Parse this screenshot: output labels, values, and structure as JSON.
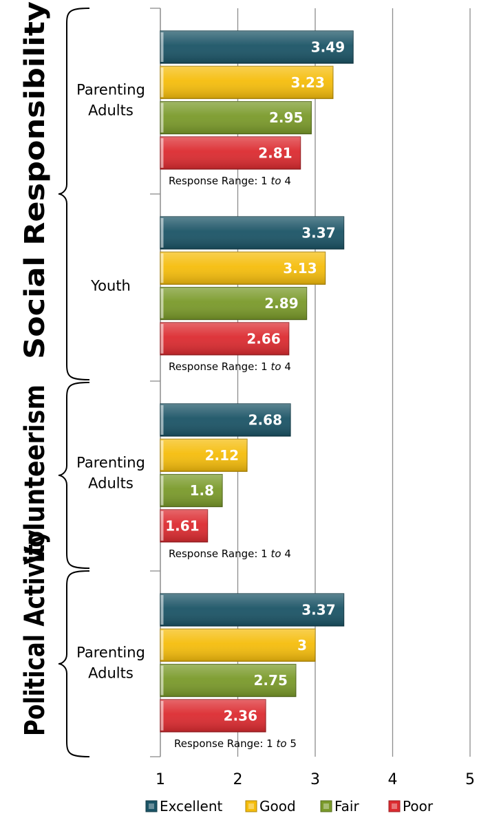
{
  "chart_data": {
    "type": "bar",
    "orientation": "horizontal",
    "xlim": [
      1,
      5
    ],
    "xticks": [
      "1",
      "2",
      "3",
      "4",
      "5"
    ],
    "grid": true,
    "legend_position": "bottom",
    "series": [
      {
        "name": "Excellent",
        "color": "#1b5466"
      },
      {
        "name": "Good",
        "color": "#f5bd0c"
      },
      {
        "name": "Fair",
        "color": "#7a9a2a"
      },
      {
        "name": "Poor",
        "color": "#dc2b30"
      }
    ],
    "groups": [
      {
        "label": "Social Responsibility",
        "panels": [
          0,
          1
        ]
      },
      {
        "label": "Volunteerism",
        "panels": [
          2
        ]
      },
      {
        "label": "Political Activity",
        "panels": [
          3
        ]
      }
    ],
    "panels": [
      {
        "category": [
          "Parenting",
          "Adults"
        ],
        "values": [
          3.49,
          3.23,
          2.95,
          2.81
        ],
        "labels": [
          "3.49",
          "3.23",
          "2.95",
          "2.81"
        ],
        "range_prefix": "Response Range:  1 ",
        "range_to": "to",
        "range_suffix": " 4"
      },
      {
        "category": [
          "Youth"
        ],
        "values": [
          3.37,
          3.13,
          2.89,
          2.66
        ],
        "labels": [
          "3.37",
          "3.13",
          "2.89",
          "2.66"
        ],
        "range_prefix": "Response Range: 1 ",
        "range_to": "to",
        "range_suffix": " 4"
      },
      {
        "category": [
          "Parenting",
          "Adults"
        ],
        "values": [
          2.68,
          2.12,
          1.8,
          1.61
        ],
        "labels": [
          "2.68",
          "2.12",
          "1.8",
          "1.61"
        ],
        "range_prefix": "Response Range: 1 ",
        "range_to": "to",
        "range_suffix": " 4"
      },
      {
        "category": [
          "Parenting",
          "Adults"
        ],
        "values": [
          3.37,
          3.0,
          2.75,
          2.36
        ],
        "labels": [
          "3.37",
          "3",
          "2.75",
          "2.36"
        ],
        "range_prefix": "Response Range: 1 ",
        "range_to": "to",
        "range_suffix": " 5"
      }
    ]
  }
}
